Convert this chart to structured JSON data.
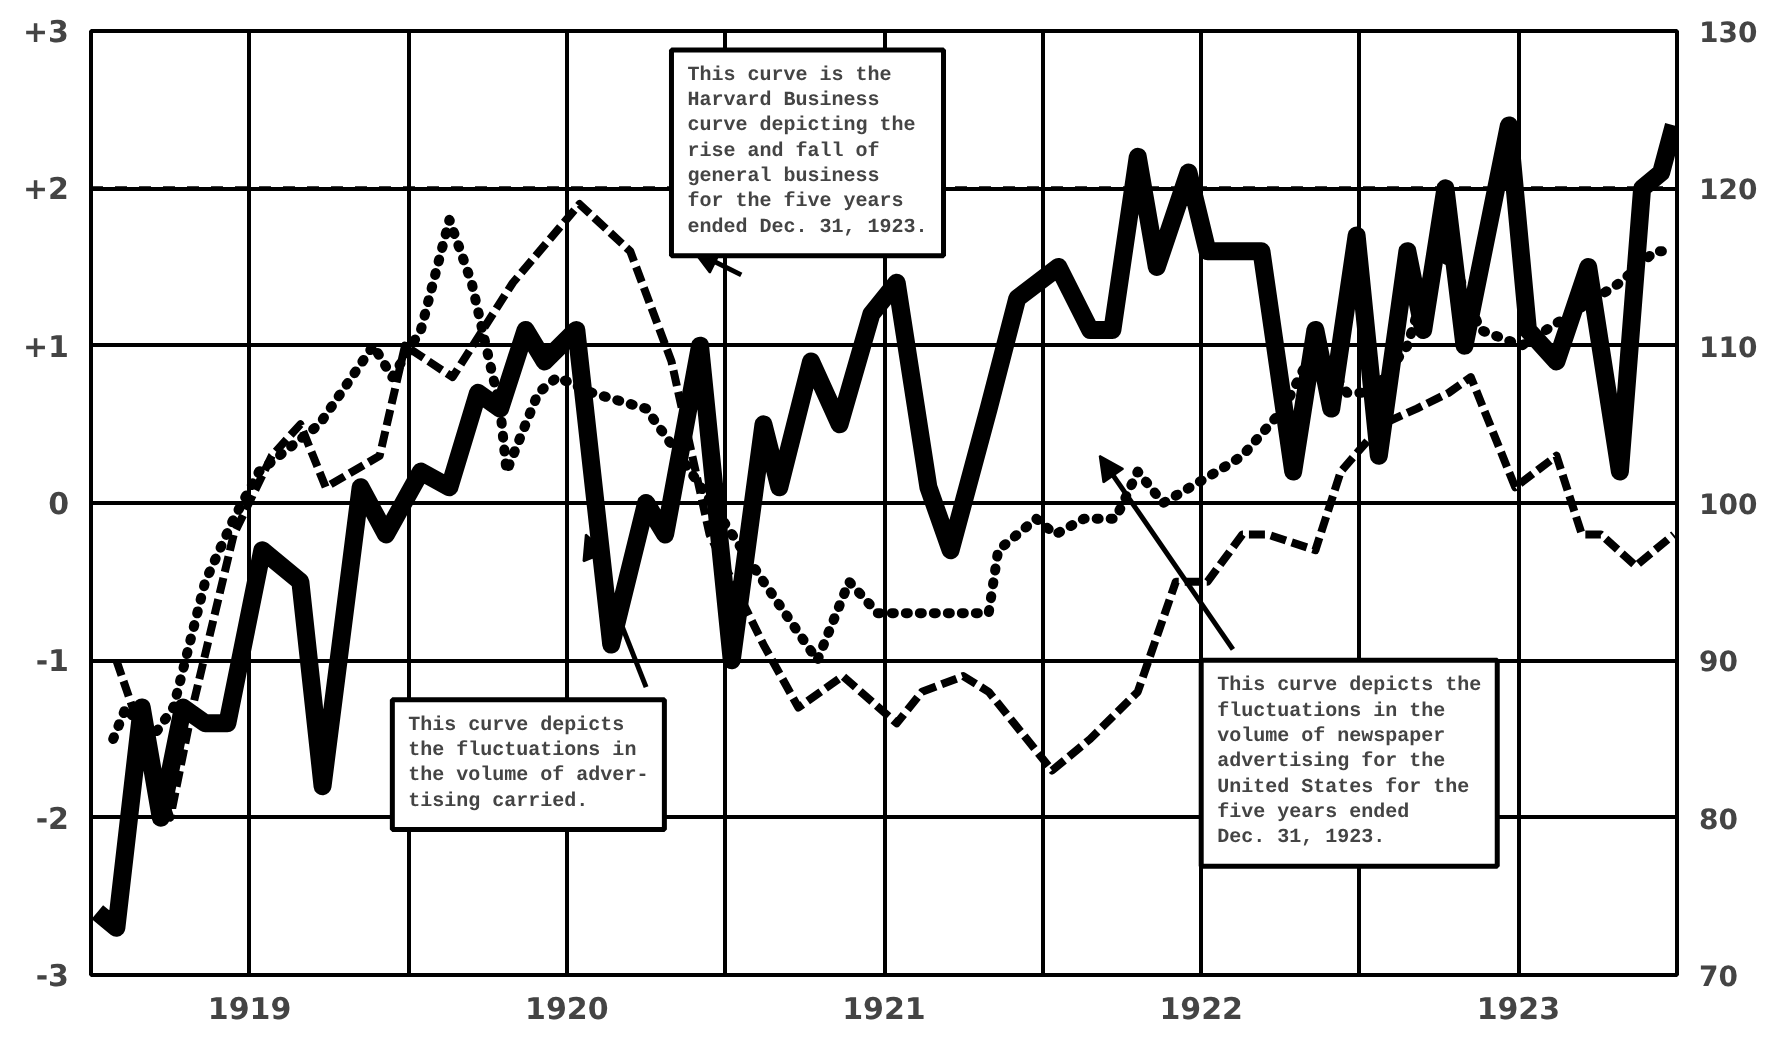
{
  "chart_data": {
    "type": "line",
    "xlim": [
      1919.0,
      1924.0
    ],
    "xticks": [
      {
        "value": 1919.0,
        "label": null
      },
      {
        "value": 1919.5,
        "label": "1919"
      },
      {
        "value": 1920.0,
        "label": null
      },
      {
        "value": 1920.5,
        "label": "1920"
      },
      {
        "value": 1921.0,
        "label": null
      },
      {
        "value": 1921.5,
        "label": "1921"
      },
      {
        "value": 1922.0,
        "label": null
      },
      {
        "value": 1922.5,
        "label": "1922"
      },
      {
        "value": 1923.0,
        "label": null
      },
      {
        "value": 1923.5,
        "label": "1923"
      },
      {
        "value": 1924.0,
        "label": null
      }
    ],
    "ylim": [
      -3,
      3
    ],
    "yticks": [
      {
        "value": -3,
        "label": "-3"
      },
      {
        "value": -2,
        "label": "-2"
      },
      {
        "value": -1,
        "label": "-1"
      },
      {
        "value": 0,
        "label": "0"
      },
      {
        "value": 1,
        "label": "+1"
      },
      {
        "value": 2,
        "label": "+2"
      },
      {
        "value": 3,
        "label": "+3"
      }
    ],
    "y2lim": [
      70,
      130
    ],
    "y2ticks": [
      70,
      80,
      90,
      100,
      110,
      120,
      130
    ],
    "grid": true,
    "series": [
      {
        "color": "#000000",
        "line_style": "solid",
        "x": [
          1919.02,
          1919.08,
          1919.16,
          1919.22,
          1919.29,
          1919.36,
          1919.43,
          1919.54,
          1919.66,
          1919.73,
          1919.85,
          1919.93,
          1920.04,
          1920.13,
          1920.22,
          1920.29,
          1920.37,
          1920.43,
          1920.53,
          1920.64,
          1920.75,
          1920.81,
          1920.92,
          1921.02,
          1921.12,
          1921.17,
          1921.27,
          1921.36,
          1921.46,
          1921.54,
          1921.64,
          1921.71,
          1921.83,
          1921.92,
          1922.05,
          1922.15,
          1922.22,
          1922.3,
          1922.36,
          1922.46,
          1922.52,
          1922.63,
          1922.69,
          1922.79,
          1922.86,
          1922.91,
          1922.99,
          1923.06,
          1923.15,
          1923.2,
          1923.27,
          1923.33,
          1923.47,
          1923.53,
          1923.62,
          1923.72,
          1923.82,
          1923.89,
          1923.95,
          1923.99
        ],
        "values": [
          -2.6,
          -2.7,
          -1.3,
          -2.0,
          -1.3,
          -1.4,
          -1.4,
          -0.3,
          -0.5,
          -1.8,
          0.1,
          -0.2,
          0.2,
          0.1,
          0.7,
          0.6,
          1.1,
          0.9,
          1.1,
          -0.9,
          0.0,
          -0.2,
          1.0,
          -1.0,
          0.5,
          0.1,
          0.9,
          0.5,
          1.2,
          1.4,
          0.1,
          -0.3,
          0.6,
          1.3,
          1.5,
          1.1,
          1.1,
          2.2,
          1.5,
          2.1,
          1.6,
          1.6,
          1.6,
          0.2,
          1.1,
          0.6,
          1.7,
          0.3,
          1.6,
          1.1,
          2.0,
          1.0,
          2.4,
          1.1,
          0.9,
          1.5,
          0.2,
          2.0,
          2.1,
          2.4
        ]
      },
      {
        "color": "#000000",
        "line_style": "dotted",
        "x": [
          1919.07,
          1919.11,
          1919.19,
          1919.26,
          1919.36,
          1919.45,
          1919.53,
          1919.72,
          1919.89,
          1919.95,
          1920.04,
          1920.13,
          1920.2,
          1920.29,
          1920.31,
          1920.41,
          1920.47,
          1920.58,
          1920.75,
          1920.89,
          1921.12,
          1921.29,
          1921.39,
          1921.48,
          1921.71,
          1921.83,
          1921.86,
          1921.98,
          1922.04,
          1922.13,
          1922.23,
          1922.3,
          1922.38,
          1922.55,
          1922.63,
          1922.76,
          1922.86,
          1922.96,
          1923.04,
          1923.15,
          1923.24,
          1923.3,
          1923.38,
          1923.51,
          1923.82,
          1923.93,
          1923.99
        ],
        "values": [
          -1.5,
          -1.3,
          -1.5,
          -1.3,
          -0.5,
          -0.1,
          0.2,
          0.5,
          1.0,
          0.8,
          1.1,
          1.8,
          1.4,
          0.6,
          0.2,
          0.7,
          0.8,
          0.7,
          0.6,
          0.2,
          -0.5,
          -1.0,
          -0.5,
          -0.7,
          -0.7,
          -0.7,
          -0.3,
          -0.1,
          -0.2,
          -0.1,
          -0.1,
          0.2,
          0.0,
          0.2,
          0.3,
          0.6,
          1.0,
          0.7,
          0.7,
          1.0,
          1.6,
          1.5,
          1.1,
          1.0,
          1.4,
          1.6,
          1.6
        ]
      },
      {
        "color": "#000000",
        "line_style": "dashed",
        "x": [
          1919.08,
          1919.25,
          1919.32,
          1919.45,
          1919.57,
          1919.66,
          1919.74,
          1919.91,
          1919.99,
          1920.14,
          1920.33,
          1920.54,
          1920.7,
          1920.83,
          1920.95,
          1921.12,
          1921.23,
          1921.37,
          1921.54,
          1921.62,
          1921.75,
          1921.83,
          1922.03,
          1922.15,
          1922.3,
          1922.42,
          1922.52,
          1922.63,
          1922.71,
          1922.86,
          1922.94,
          1923.07,
          1923.18,
          1923.28,
          1923.35,
          1923.49,
          1923.62,
          1923.7,
          1923.76,
          1923.87,
          1923.99
        ],
        "values": [
          -1.0,
          -2.0,
          -1.3,
          -0.2,
          0.3,
          0.5,
          0.1,
          0.3,
          1.0,
          0.8,
          1.4,
          1.9,
          1.6,
          0.9,
          -0.2,
          -0.9,
          -1.3,
          -1.1,
          -1.4,
          -1.2,
          -1.1,
          -1.2,
          -1.7,
          -1.5,
          -1.2,
          -0.5,
          -0.5,
          -0.2,
          -0.2,
          -0.3,
          0.2,
          0.5,
          0.6,
          0.7,
          0.8,
          0.1,
          0.3,
          -0.2,
          -0.2,
          -0.4,
          -0.2
        ]
      }
    ],
    "ref_lines": [
      {
        "axis": "y",
        "value": 2,
        "line_style": "dashed"
      }
    ],
    "annotations": [
      "This curve is the\nHarvard Business\ncurve depicting the\nrise and fall of\ngeneral business\nfor the five years\nended Dec. 31, 1923.",
      "This curve depicts\nthe fluctuations in\nthe volume of adver-\ntising carried.",
      "This curve depicts the\nfluctuations in the\nvolume of newspaper\nadvertising for the\nUnited States for the\nfive years ended\nDec. 31, 1923."
    ]
  }
}
